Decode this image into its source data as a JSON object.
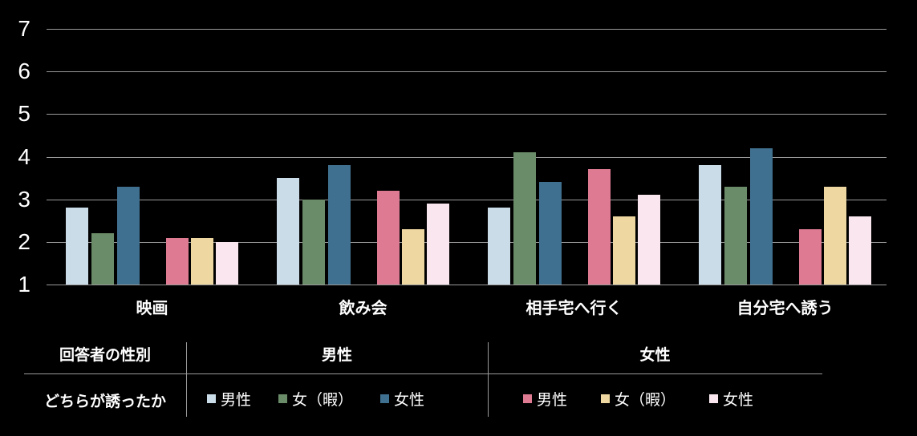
{
  "canvas": {
    "background": "#000000",
    "text_color": "#ffffff",
    "gridline_color": "#9a9a9a"
  },
  "chart_data": {
    "type": "bar",
    "title": "",
    "xlabel": "",
    "ylabel": "",
    "categories": [
      "映画",
      "飲み会",
      "相手宅へ行く",
      "自分宅へ誘う"
    ],
    "series": [
      {
        "respondent": "男性",
        "inviter": "男性",
        "color": "#c9dce8",
        "values": [
          2.8,
          3.5,
          2.8,
          3.8
        ]
      },
      {
        "respondent": "男性",
        "inviter": "女（暇）",
        "color": "#6b8c68",
        "values": [
          2.2,
          3.0,
          4.1,
          3.3
        ]
      },
      {
        "respondent": "男性",
        "inviter": "女性",
        "color": "#40708f",
        "values": [
          3.3,
          3.8,
          3.4,
          4.2
        ]
      },
      {
        "respondent": "女性",
        "inviter": "男性",
        "color": "#de7b92",
        "values": [
          2.1,
          3.2,
          3.7,
          2.3
        ]
      },
      {
        "respondent": "女性",
        "inviter": "女（暇）",
        "color": "#eed7a0",
        "values": [
          2.1,
          2.3,
          2.6,
          3.3
        ]
      },
      {
        "respondent": "女性",
        "inviter": "女性",
        "color": "#f9e6ee",
        "values": [
          2.0,
          2.9,
          3.1,
          2.6
        ]
      }
    ],
    "y_axis": {
      "min": 1,
      "max": 7,
      "ticks": [
        1,
        2,
        3,
        4,
        5,
        6,
        7
      ]
    },
    "grid": true,
    "legend_position": "bottom-table"
  },
  "legend_table": {
    "row1_header": "回答者の性別",
    "row2_header": "どちらが誘ったか",
    "groups": [
      {
        "header": "男性",
        "items": [
          {
            "label": "男性",
            "color": "#c9dce8"
          },
          {
            "label": "女（暇）",
            "color": "#6b8c68"
          },
          {
            "label": "女性",
            "color": "#40708f"
          }
        ]
      },
      {
        "header": "女性",
        "items": [
          {
            "label": "男性",
            "color": "#de7b92"
          },
          {
            "label": "女（暇）",
            "color": "#eed7a0"
          },
          {
            "label": "女性",
            "color": "#f9e6ee"
          }
        ]
      }
    ]
  }
}
